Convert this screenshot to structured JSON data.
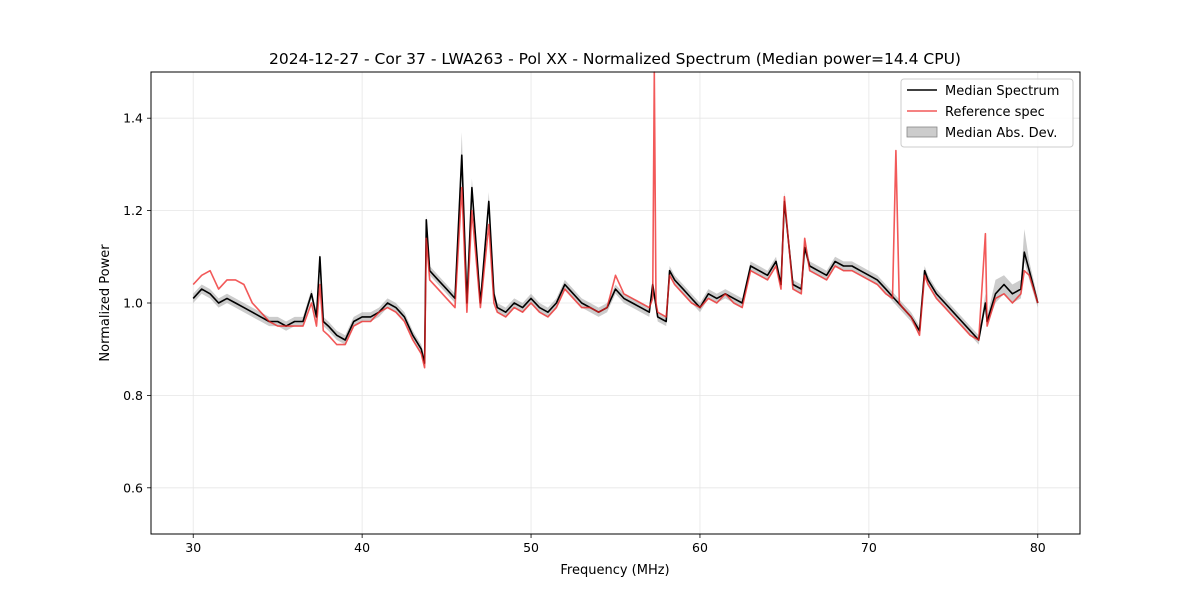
{
  "chart_data": {
    "type": "line",
    "title": "2024-12-27 - Cor 37 - LWA263 - Pol XX - Normalized Spectrum (Median power=14.4 CPU)",
    "xlabel": "Frequency (MHz)",
    "ylabel": "Normalized Power",
    "xlim": [
      27.5,
      82.5
    ],
    "ylim": [
      0.5,
      1.5
    ],
    "xticks": [
      30,
      40,
      50,
      60,
      70,
      80
    ],
    "yticks": [
      0.6,
      0.8,
      1.0,
      1.2,
      1.4
    ],
    "xtick_labels": [
      "30",
      "40",
      "50",
      "60",
      "70",
      "80"
    ],
    "ytick_labels": [
      "0.6",
      "0.8",
      "1.0",
      "1.2",
      "1.4"
    ],
    "grid": true,
    "legend_position": "top-right",
    "colors": {
      "median": "#000000",
      "reference": "#ee2222",
      "mad_band": "#999999"
    },
    "series": [
      {
        "name": "Median Spectrum",
        "x": [
          30,
          30.5,
          31,
          31.5,
          32,
          32.5,
          33,
          33.5,
          34,
          34.5,
          35,
          35.5,
          36,
          36.5,
          37,
          37.3,
          37.5,
          37.7,
          38,
          38.5,
          39,
          39.5,
          40,
          40.5,
          41,
          41.5,
          42,
          42.5,
          43,
          43.5,
          43.7,
          43.8,
          44,
          44.5,
          45,
          45.5,
          45.9,
          46.2,
          46.5,
          47,
          47.5,
          47.8,
          48,
          48.5,
          49,
          49.5,
          50,
          50.5,
          51,
          51.5,
          52,
          52.5,
          53,
          53.5,
          54,
          54.5,
          55,
          55.5,
          56,
          56.5,
          57,
          57.2,
          57.5,
          58,
          58.2,
          58.5,
          59,
          59.5,
          60,
          60.5,
          61,
          61.5,
          62,
          62.5,
          63,
          63.5,
          64,
          64.5,
          64.8,
          65,
          65.5,
          66,
          66.2,
          66.5,
          67,
          67.5,
          68,
          68.5,
          69,
          69.5,
          70,
          70.5,
          71,
          71.5,
          72,
          72.5,
          73,
          73.3,
          73.5,
          74,
          74.5,
          75,
          75.5,
          76,
          76.5,
          76.9,
          77,
          77.5,
          78,
          78.5,
          79,
          79.2,
          79.5,
          80
        ],
        "values": [
          1.01,
          1.03,
          1.02,
          1.0,
          1.01,
          1.0,
          0.99,
          0.98,
          0.97,
          0.96,
          0.96,
          0.95,
          0.96,
          0.96,
          1.02,
          0.97,
          1.1,
          0.96,
          0.95,
          0.93,
          0.92,
          0.96,
          0.97,
          0.97,
          0.98,
          1.0,
          0.99,
          0.97,
          0.93,
          0.9,
          0.87,
          1.18,
          1.07,
          1.05,
          1.03,
          1.01,
          1.32,
          1.0,
          1.25,
          1.0,
          1.22,
          1.02,
          0.99,
          0.98,
          1.0,
          0.99,
          1.01,
          0.99,
          0.98,
          1.0,
          1.04,
          1.02,
          1.0,
          0.99,
          0.98,
          0.99,
          1.03,
          1.01,
          1.0,
          0.99,
          0.98,
          1.04,
          0.97,
          0.96,
          1.07,
          1.05,
          1.03,
          1.01,
          0.99,
          1.02,
          1.01,
          1.02,
          1.01,
          1.0,
          1.08,
          1.07,
          1.06,
          1.09,
          1.04,
          1.22,
          1.04,
          1.03,
          1.12,
          1.08,
          1.07,
          1.06,
          1.09,
          1.08,
          1.08,
          1.07,
          1.06,
          1.05,
          1.03,
          1.01,
          0.99,
          0.97,
          0.94,
          1.07,
          1.05,
          1.02,
          1.0,
          0.98,
          0.96,
          0.94,
          0.92,
          1.0,
          0.96,
          1.02,
          1.04,
          1.02,
          1.03,
          1.11,
          1.07,
          1.0
        ]
      },
      {
        "name": "Reference spec",
        "x": [
          30,
          30.5,
          31,
          31.5,
          32,
          32.5,
          33,
          33.5,
          34,
          34.5,
          35,
          35.5,
          36,
          36.5,
          37,
          37.3,
          37.5,
          37.7,
          38,
          38.5,
          39,
          39.5,
          40,
          40.5,
          41,
          41.5,
          42,
          42.5,
          43,
          43.5,
          43.7,
          43.8,
          44,
          44.5,
          45,
          45.5,
          45.9,
          46.2,
          46.5,
          47,
          47.5,
          47.8,
          48,
          48.5,
          49,
          49.5,
          50,
          50.5,
          51,
          51.5,
          52,
          52.5,
          53,
          53.5,
          54,
          54.5,
          55,
          55.5,
          56,
          56.5,
          57,
          57.2,
          57.3,
          57.4,
          57.5,
          58,
          58.2,
          58.5,
          59,
          59.5,
          60,
          60.5,
          61,
          61.5,
          62,
          62.5,
          63,
          63.5,
          64,
          64.5,
          64.8,
          65,
          65.5,
          66,
          66.2,
          66.5,
          67,
          67.5,
          68,
          68.5,
          69,
          69.5,
          70,
          70.5,
          71,
          71.4,
          71.6,
          71.8,
          72,
          72.5,
          73,
          73.3,
          73.5,
          74,
          74.5,
          75,
          75.5,
          76,
          76.5,
          76.9,
          77,
          77.5,
          78,
          78.5,
          79,
          79.2,
          79.5,
          80
        ],
        "values": [
          1.04,
          1.06,
          1.07,
          1.03,
          1.05,
          1.05,
          1.04,
          1.0,
          0.98,
          0.96,
          0.95,
          0.95,
          0.95,
          0.95,
          1.0,
          0.95,
          1.04,
          0.94,
          0.93,
          0.91,
          0.91,
          0.95,
          0.96,
          0.96,
          0.98,
          0.99,
          0.98,
          0.96,
          0.92,
          0.89,
          0.86,
          1.14,
          1.05,
          1.03,
          1.01,
          0.99,
          1.25,
          0.98,
          1.2,
          0.99,
          1.17,
          1.0,
          0.98,
          0.97,
          0.99,
          0.98,
          1.0,
          0.98,
          0.97,
          0.99,
          1.03,
          1.01,
          0.99,
          0.99,
          0.98,
          0.99,
          1.06,
          1.02,
          1.01,
          1.0,
          0.99,
          1.01,
          1.5,
          1.0,
          0.98,
          0.97,
          1.06,
          1.04,
          1.02,
          1.0,
          0.99,
          1.01,
          1.0,
          1.02,
          1.0,
          0.99,
          1.07,
          1.06,
          1.05,
          1.08,
          1.03,
          1.23,
          1.03,
          1.02,
          1.14,
          1.07,
          1.06,
          1.05,
          1.08,
          1.07,
          1.07,
          1.06,
          1.05,
          1.04,
          1.02,
          1.01,
          1.33,
          1.0,
          0.99,
          0.97,
          0.93,
          1.06,
          1.04,
          1.01,
          0.99,
          0.97,
          0.95,
          0.93,
          0.92,
          1.15,
          0.95,
          1.01,
          1.02,
          1.0,
          1.02,
          1.07,
          1.06,
          1.0
        ]
      },
      {
        "name": "Median Abs. Dev.",
        "x": [
          30,
          30.5,
          31,
          31.5,
          32,
          32.5,
          33,
          33.5,
          34,
          34.5,
          35,
          35.5,
          36,
          36.5,
          37,
          37.3,
          37.5,
          37.7,
          38,
          38.5,
          39,
          39.5,
          40,
          40.5,
          41,
          41.5,
          42,
          42.5,
          43,
          43.5,
          43.7,
          43.8,
          44,
          44.5,
          45,
          45.5,
          45.9,
          46.2,
          46.5,
          47,
          47.5,
          47.8,
          48,
          48.5,
          49,
          49.5,
          50,
          50.5,
          51,
          51.5,
          52,
          52.5,
          53,
          53.5,
          54,
          54.5,
          55,
          55.5,
          56,
          56.5,
          57,
          57.2,
          57.5,
          58,
          58.2,
          58.5,
          59,
          59.5,
          60,
          60.5,
          61,
          61.5,
          62,
          62.5,
          63,
          63.5,
          64,
          64.5,
          64.8,
          65,
          65.5,
          66,
          66.2,
          66.5,
          67,
          67.5,
          68,
          68.5,
          69,
          69.5,
          70,
          70.5,
          71,
          71.5,
          72,
          72.5,
          73,
          73.3,
          73.5,
          74,
          74.5,
          75,
          75.5,
          76,
          76.5,
          76.9,
          77,
          77.5,
          78,
          78.5,
          79,
          79.2,
          79.5,
          80
        ],
        "lower": [
          1.0,
          1.02,
          1.01,
          0.99,
          1.0,
          0.99,
          0.98,
          0.97,
          0.96,
          0.95,
          0.95,
          0.94,
          0.95,
          0.95,
          1.01,
          0.96,
          1.09,
          0.95,
          0.94,
          0.92,
          0.91,
          0.95,
          0.96,
          0.96,
          0.97,
          0.99,
          0.98,
          0.96,
          0.92,
          0.89,
          0.86,
          1.17,
          1.06,
          1.04,
          1.02,
          1.0,
          1.3,
          0.99,
          1.23,
          0.99,
          1.2,
          1.01,
          0.98,
          0.97,
          0.99,
          0.98,
          1.0,
          0.98,
          0.97,
          0.99,
          1.03,
          1.01,
          0.99,
          0.98,
          0.97,
          0.98,
          1.02,
          1.0,
          0.99,
          0.98,
          0.97,
          1.03,
          0.96,
          0.95,
          1.06,
          1.04,
          1.02,
          1.0,
          0.98,
          1.01,
          1.0,
          1.01,
          1.0,
          0.99,
          1.07,
          1.06,
          1.05,
          1.08,
          1.03,
          1.21,
          1.03,
          1.02,
          1.11,
          1.07,
          1.06,
          1.05,
          1.08,
          1.07,
          1.07,
          1.06,
          1.05,
          1.04,
          1.02,
          1.0,
          0.98,
          0.96,
          0.93,
          1.06,
          1.04,
          1.01,
          0.99,
          0.97,
          0.95,
          0.93,
          0.91,
          0.99,
          0.95,
          1.0,
          1.02,
          1.0,
          1.01,
          1.09,
          1.05,
          0.99
        ],
        "upper": [
          1.02,
          1.04,
          1.03,
          1.01,
          1.02,
          1.01,
          1.0,
          0.99,
          0.98,
          0.97,
          0.97,
          0.96,
          0.97,
          0.97,
          1.03,
          0.98,
          1.11,
          0.97,
          0.96,
          0.94,
          0.93,
          0.97,
          0.98,
          0.98,
          0.99,
          1.01,
          1.0,
          0.98,
          0.94,
          0.91,
          0.88,
          1.19,
          1.08,
          1.06,
          1.04,
          1.02,
          1.37,
          1.01,
          1.27,
          1.01,
          1.24,
          1.03,
          1.0,
          0.99,
          1.01,
          1.0,
          1.02,
          1.0,
          0.99,
          1.01,
          1.05,
          1.03,
          1.01,
          1.0,
          0.99,
          1.0,
          1.04,
          1.02,
          1.01,
          1.0,
          0.99,
          1.05,
          0.98,
          0.97,
          1.08,
          1.06,
          1.04,
          1.02,
          1.0,
          1.03,
          1.02,
          1.03,
          1.02,
          1.01,
          1.09,
          1.08,
          1.07,
          1.1,
          1.05,
          1.24,
          1.05,
          1.04,
          1.14,
          1.09,
          1.08,
          1.07,
          1.1,
          1.09,
          1.09,
          1.08,
          1.07,
          1.06,
          1.04,
          1.02,
          1.0,
          0.98,
          0.95,
          1.08,
          1.06,
          1.03,
          1.01,
          0.99,
          0.97,
          0.95,
          0.93,
          1.02,
          0.97,
          1.05,
          1.06,
          1.04,
          1.05,
          1.16,
          1.09,
          1.01
        ]
      }
    ]
  }
}
